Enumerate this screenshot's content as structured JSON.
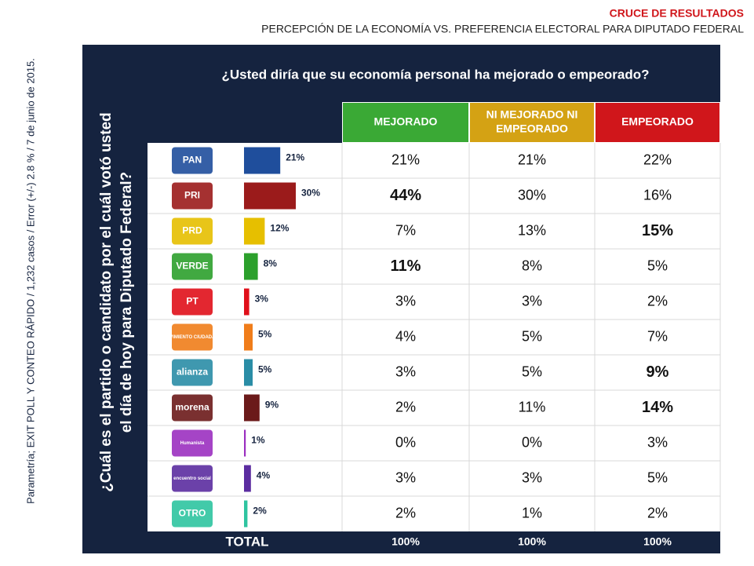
{
  "header": {
    "title": "CRUCE DE RESULTADOS",
    "subtitle": "PERCEPCIÓN DE LA ECONOMÍA VS. PREFERENCIA ELECTORAL PARA DIPUTADO FEDERAL"
  },
  "source_note": "Parametría; EXIT POLL Y CONTEO RÁPIDO / 1,232 casos / Error (+/-) 2.8 % / 7 de junio de 2015.",
  "question": "¿Usted diría que su economía personal ha mejorado o empeorado?",
  "side_question": [
    "¿Cuál es el partido o candidato por el cuál votó usted",
    "el día de hoy para Diputado Federal?"
  ],
  "table": {
    "columns": [
      {
        "label": [
          "MEJORADO"
        ],
        "color": "#3aa935"
      },
      {
        "label": [
          "NI MEJORADO NI",
          "EMPEORADO"
        ],
        "color": "#d4a214"
      },
      {
        "label": [
          "EMPEORADO"
        ],
        "color": "#d0161b"
      }
    ],
    "rows": [
      {
        "party": "PAN",
        "vote": 21,
        "vote_label": "21%",
        "color": "#1f4e9c",
        "cells": [
          "21%",
          "21%",
          "22%"
        ],
        "bold": []
      },
      {
        "party": "PRI",
        "vote": 30,
        "vote_label": "30%",
        "color": "#9b1b1b",
        "cells": [
          "44%",
          "30%",
          "16%"
        ],
        "bold": [
          0
        ]
      },
      {
        "party": "PRD",
        "vote": 12,
        "vote_label": "12%",
        "color": "#e6bf00",
        "cells": [
          "7%",
          "13%",
          "15%"
        ],
        "bold": [
          2
        ]
      },
      {
        "party": "VERDE",
        "vote": 8,
        "vote_label": "8%",
        "color": "#2ca02c",
        "cells": [
          "11%",
          "8%",
          "5%"
        ],
        "bold": [
          0
        ]
      },
      {
        "party": "PT",
        "vote": 3,
        "vote_label": "3%",
        "color": "#e0101a",
        "cells": [
          "3%",
          "3%",
          "2%"
        ],
        "bold": []
      },
      {
        "party": "MOVIMIENTO CIUDADANO",
        "vote": 5,
        "vote_label": "5%",
        "color": "#f07d1a",
        "cells": [
          "4%",
          "5%",
          "7%"
        ],
        "bold": []
      },
      {
        "party": "alianza",
        "vote": 5,
        "vote_label": "5%",
        "color": "#2a8da6",
        "cells": [
          "3%",
          "5%",
          "9%"
        ],
        "bold": [
          2
        ]
      },
      {
        "party": "morena",
        "vote": 9,
        "vote_label": "9%",
        "color": "#6b1a1a",
        "cells": [
          "2%",
          "11%",
          "14%"
        ],
        "bold": [
          2
        ]
      },
      {
        "party": "Humanista",
        "vote": 1,
        "vote_label": "1%",
        "color": "#9b30c0",
        "cells": [
          "0%",
          "0%",
          "3%"
        ],
        "bold": []
      },
      {
        "party": "encuentro social",
        "vote": 4,
        "vote_label": "4%",
        "color": "#5b2ca0",
        "cells": [
          "3%",
          "3%",
          "5%"
        ],
        "bold": []
      },
      {
        "party": "OTRO",
        "vote": 2,
        "vote_label": "2%",
        "color": "#2ec4a0",
        "cells": [
          "2%",
          "1%",
          "2%"
        ],
        "bold": []
      }
    ],
    "total": {
      "label": "TOTAL",
      "cells": [
        "100%",
        "100%",
        "100%"
      ]
    }
  }
}
